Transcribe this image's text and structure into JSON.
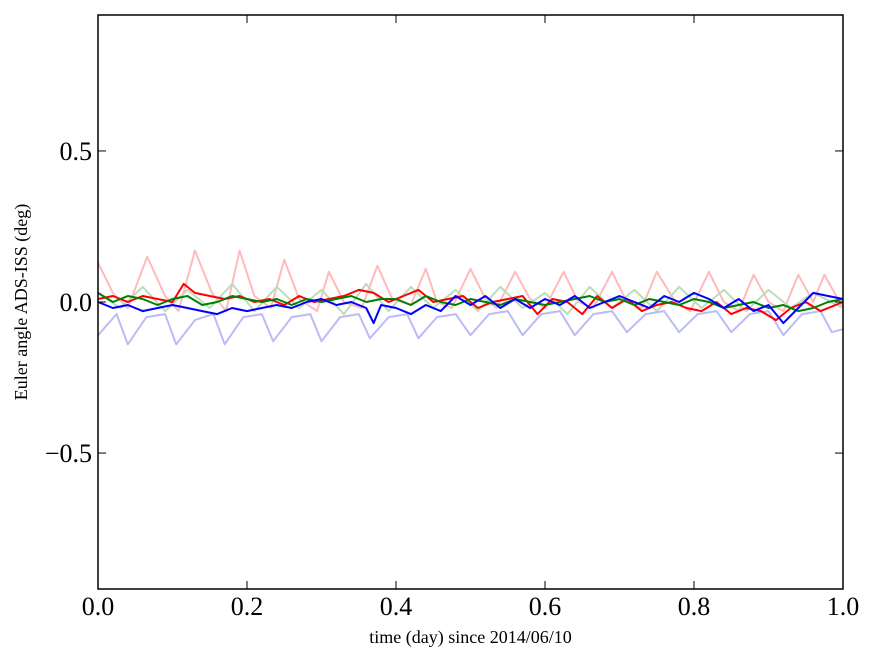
{
  "chart_data": {
    "type": "line",
    "title": "",
    "xlabel": "time (day) since 2014/06/10",
    "ylabel": "Euler angle ADS-ISS (deg)",
    "xlim": [
      0.0,
      1.0
    ],
    "ylim": [
      -0.95,
      0.95
    ],
    "grid": false,
    "legend": "none",
    "x_ticks": [
      0.0,
      0.2,
      0.4,
      0.6,
      0.8,
      1.0
    ],
    "x_tick_labels": [
      "0.0",
      "0.2",
      "0.4",
      "0.6",
      "0.8",
      "1.0"
    ],
    "y_ticks": [
      0.5,
      0.0,
      -0.5
    ],
    "y_tick_labels": [
      "0.5",
      "0.0",
      "−0.5"
    ],
    "series": [
      {
        "color": "#ffbbbb",
        "x": [
          0.0,
          0.02,
          0.04,
          0.066,
          0.09,
          0.108,
          0.13,
          0.153,
          0.172,
          0.19,
          0.21,
          0.232,
          0.25,
          0.27,
          0.294,
          0.31,
          0.33,
          0.354,
          0.375,
          0.395,
          0.42,
          0.44,
          0.455,
          0.475,
          0.5,
          0.52,
          0.535,
          0.56,
          0.58,
          0.6,
          0.625,
          0.645,
          0.665,
          0.69,
          0.71,
          0.73,
          0.75,
          0.775,
          0.795,
          0.82,
          0.84,
          0.86,
          0.88,
          0.9,
          0.92,
          0.94,
          0.96,
          0.975,
          1.0
        ],
        "y": [
          0.13,
          0.03,
          -0.02,
          0.15,
          0.02,
          -0.03,
          0.17,
          0.03,
          -0.03,
          0.17,
          0.02,
          -0.02,
          0.14,
          0.01,
          -0.03,
          0.1,
          0.0,
          -0.02,
          0.12,
          0.01,
          -0.01,
          0.11,
          0.0,
          -0.02,
          0.11,
          0.01,
          -0.02,
          0.1,
          0.01,
          -0.02,
          0.1,
          0.0,
          -0.02,
          0.1,
          0.0,
          -0.02,
          0.1,
          0.0,
          -0.03,
          0.1,
          0.0,
          -0.03,
          0.09,
          0.0,
          -0.03,
          0.09,
          0.0,
          0.09,
          -0.02
        ]
      },
      {
        "color": "#bbddbb",
        "x": [
          0.0,
          0.03,
          0.06,
          0.09,
          0.12,
          0.15,
          0.18,
          0.21,
          0.24,
          0.27,
          0.3,
          0.33,
          0.36,
          0.39,
          0.42,
          0.45,
          0.48,
          0.51,
          0.54,
          0.57,
          0.6,
          0.63,
          0.66,
          0.69,
          0.72,
          0.75,
          0.78,
          0.81,
          0.84,
          0.87,
          0.9,
          0.93,
          0.96,
          1.0
        ],
        "y": [
          0.03,
          -0.02,
          0.05,
          -0.03,
          0.04,
          -0.02,
          0.06,
          -0.03,
          0.05,
          -0.02,
          0.04,
          -0.04,
          0.06,
          -0.03,
          0.05,
          -0.02,
          0.04,
          -0.03,
          0.05,
          -0.02,
          0.03,
          -0.04,
          0.05,
          -0.02,
          0.04,
          -0.03,
          0.05,
          -0.02,
          0.04,
          -0.03,
          0.04,
          -0.02,
          0.03,
          -0.02
        ]
      },
      {
        "color": "#bbbbf5",
        "x": [
          0.0,
          0.025,
          0.04,
          0.065,
          0.09,
          0.105,
          0.13,
          0.155,
          0.17,
          0.195,
          0.22,
          0.235,
          0.26,
          0.285,
          0.3,
          0.325,
          0.35,
          0.365,
          0.39,
          0.415,
          0.43,
          0.455,
          0.48,
          0.5,
          0.525,
          0.55,
          0.57,
          0.595,
          0.62,
          0.64,
          0.665,
          0.69,
          0.71,
          0.735,
          0.76,
          0.78,
          0.805,
          0.83,
          0.85,
          0.875,
          0.9,
          0.92,
          0.945,
          0.97,
          0.985,
          1.0
        ],
        "y": [
          -0.11,
          -0.04,
          -0.14,
          -0.05,
          -0.04,
          -0.14,
          -0.06,
          -0.04,
          -0.14,
          -0.05,
          -0.04,
          -0.13,
          -0.05,
          -0.04,
          -0.13,
          -0.05,
          -0.04,
          -0.12,
          -0.05,
          -0.04,
          -0.12,
          -0.05,
          -0.04,
          -0.11,
          -0.04,
          -0.03,
          -0.11,
          -0.04,
          -0.03,
          -0.11,
          -0.04,
          -0.03,
          -0.1,
          -0.04,
          -0.03,
          -0.1,
          -0.04,
          -0.03,
          -0.1,
          -0.04,
          -0.03,
          -0.11,
          -0.04,
          -0.03,
          -0.1,
          -0.09
        ]
      },
      {
        "color": "#ff0000",
        "x": [
          0.0,
          0.02,
          0.04,
          0.06,
          0.08,
          0.1,
          0.115,
          0.13,
          0.15,
          0.17,
          0.19,
          0.21,
          0.23,
          0.25,
          0.27,
          0.29,
          0.31,
          0.33,
          0.35,
          0.37,
          0.39,
          0.41,
          0.43,
          0.45,
          0.47,
          0.49,
          0.51,
          0.53,
          0.55,
          0.57,
          0.59,
          0.61,
          0.63,
          0.65,
          0.67,
          0.69,
          0.71,
          0.73,
          0.75,
          0.77,
          0.79,
          0.81,
          0.83,
          0.85,
          0.87,
          0.89,
          0.91,
          0.93,
          0.95,
          0.97,
          1.0
        ],
        "y": [
          0.01,
          0.02,
          0.0,
          0.02,
          0.01,
          0.0,
          0.06,
          0.03,
          0.02,
          0.01,
          0.02,
          0.0,
          0.01,
          -0.01,
          0.02,
          0.0,
          0.01,
          0.02,
          0.04,
          0.03,
          0.0,
          0.02,
          0.04,
          0.0,
          0.01,
          0.02,
          -0.02,
          0.0,
          0.01,
          0.02,
          -0.04,
          0.01,
          0.0,
          -0.04,
          0.02,
          -0.02,
          0.01,
          -0.03,
          -0.01,
          0.0,
          -0.02,
          -0.03,
          0.0,
          -0.04,
          -0.02,
          -0.03,
          -0.06,
          -0.02,
          0.0,
          -0.03,
          0.0
        ]
      },
      {
        "color": "#008000",
        "x": [
          0.0,
          0.02,
          0.04,
          0.06,
          0.08,
          0.1,
          0.12,
          0.14,
          0.16,
          0.18,
          0.2,
          0.22,
          0.24,
          0.26,
          0.28,
          0.3,
          0.32,
          0.34,
          0.36,
          0.38,
          0.4,
          0.42,
          0.44,
          0.46,
          0.48,
          0.5,
          0.52,
          0.54,
          0.56,
          0.58,
          0.6,
          0.62,
          0.64,
          0.66,
          0.68,
          0.7,
          0.72,
          0.74,
          0.76,
          0.78,
          0.8,
          0.82,
          0.84,
          0.86,
          0.88,
          0.9,
          0.92,
          0.94,
          0.96,
          0.98,
          1.0
        ],
        "y": [
          0.03,
          0.0,
          0.02,
          0.01,
          -0.01,
          0.01,
          0.02,
          -0.01,
          0.0,
          0.02,
          0.01,
          0.0,
          0.01,
          -0.01,
          0.01,
          0.0,
          0.01,
          0.02,
          0.0,
          0.01,
          0.01,
          -0.01,
          0.02,
          0.0,
          -0.01,
          0.01,
          0.0,
          -0.01,
          0.01,
          0.0,
          -0.01,
          0.0,
          0.01,
          0.02,
          0.0,
          0.01,
          -0.01,
          0.01,
          0.0,
          -0.01,
          0.01,
          0.0,
          -0.02,
          -0.01,
          0.0,
          -0.02,
          -0.01,
          -0.03,
          -0.02,
          0.0,
          0.01
        ]
      },
      {
        "color": "#0000ff",
        "x": [
          0.0,
          0.02,
          0.04,
          0.06,
          0.08,
          0.1,
          0.12,
          0.14,
          0.16,
          0.18,
          0.2,
          0.22,
          0.24,
          0.26,
          0.28,
          0.3,
          0.32,
          0.34,
          0.36,
          0.37,
          0.38,
          0.4,
          0.42,
          0.44,
          0.46,
          0.48,
          0.5,
          0.52,
          0.54,
          0.56,
          0.58,
          0.6,
          0.62,
          0.64,
          0.66,
          0.68,
          0.7,
          0.72,
          0.74,
          0.76,
          0.78,
          0.8,
          0.82,
          0.84,
          0.86,
          0.88,
          0.9,
          0.92,
          0.94,
          0.96,
          0.98,
          1.0
        ],
        "y": [
          0.0,
          -0.02,
          -0.01,
          -0.03,
          -0.02,
          -0.01,
          -0.02,
          -0.03,
          -0.04,
          -0.02,
          -0.03,
          -0.02,
          -0.01,
          -0.02,
          0.0,
          0.01,
          -0.01,
          0.0,
          -0.02,
          -0.07,
          -0.01,
          -0.02,
          -0.04,
          -0.01,
          -0.03,
          0.02,
          -0.01,
          0.02,
          -0.02,
          0.01,
          -0.02,
          0.01,
          -0.01,
          0.02,
          -0.02,
          0.0,
          0.02,
          0.0,
          -0.02,
          0.02,
          0.0,
          0.03,
          0.01,
          -0.02,
          0.01,
          -0.03,
          -0.01,
          -0.07,
          -0.02,
          0.03,
          0.02,
          0.01
        ]
      }
    ]
  }
}
